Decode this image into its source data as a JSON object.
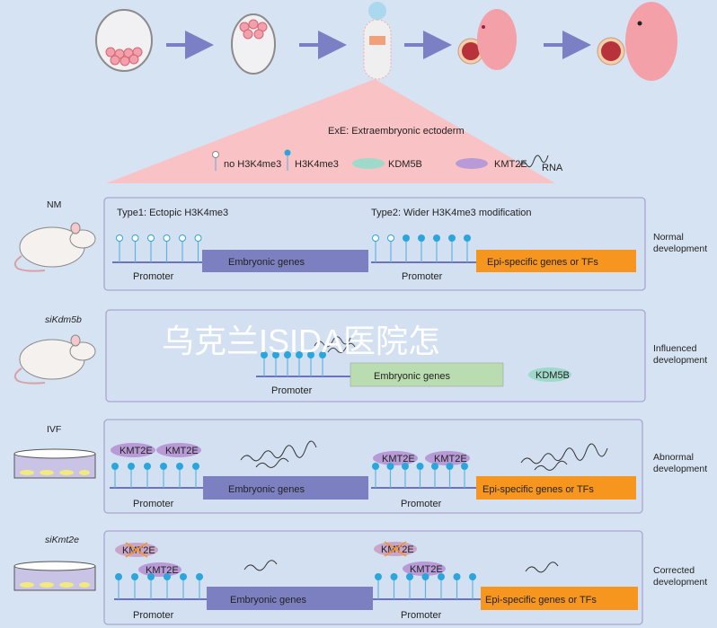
{
  "legend": {
    "title": "ExE: Extraembryonic ectoderm",
    "no_mark": "no H3K4me3",
    "mark": "H3K4me3",
    "kdm5b": "KDM5B",
    "kmt2e": "KMT2E",
    "rna": "RNA"
  },
  "colors": {
    "background": "#d6e3f3",
    "embryonic_box": "#7d80c0",
    "embryonic_box_influenced": "#b9dcb0",
    "epi_box": "#f6961f",
    "lollipop": "#2aa6dc",
    "kmt2e": "#b79ad6",
    "kdm5b": "#9fd9c9",
    "triangle": "#f9c3c6",
    "arrow": "#7b80c4"
  },
  "rows": [
    {
      "label": "NM",
      "outcome_line1": "Normal",
      "outcome_line2": "development",
      "type1": "Type1: Ectopic H3K4me3",
      "type2": "Type2: Wider H3K4me3 modification",
      "left_gene": "Embryonic genes",
      "right_gene": "Epi-specific genes or TFs",
      "promoter": "Promoter",
      "left_marks": [
        "open",
        "open",
        "open",
        "open",
        "open",
        "open"
      ],
      "right_marks": [
        "open",
        "open",
        "filled",
        "filled",
        "filled",
        "filled",
        "filled"
      ]
    },
    {
      "label": "siKdm5b",
      "outcome_line1": "Influenced",
      "outcome_line2": "development",
      "protein": "KDM5B",
      "left_gene": "Embryonic genes",
      "promoter": "Promoter",
      "left_marks": [
        "filled",
        "filled",
        "filled",
        "filled",
        "filled",
        "filled"
      ]
    },
    {
      "label": "IVF",
      "outcome_line1": "Abnormal",
      "outcome_line2": "development",
      "protein": "KMT2E",
      "left_gene": "Embryonic genes",
      "right_gene": "Epi-specific genes or TFs",
      "promoter": "Promoter",
      "left_marks": [
        "filled",
        "filled",
        "filled",
        "filled",
        "filled",
        "filled"
      ],
      "right_marks": [
        "filled",
        "filled",
        "filled",
        "filled",
        "filled",
        "filled",
        "filled"
      ]
    },
    {
      "label": "siKmt2e",
      "outcome_line1": "Corrected",
      "outcome_line2": "development",
      "protein": "KMT2E",
      "left_gene": "Embryonic genes",
      "right_gene": "Epi-specific genes or TFs",
      "promoter": "Promoter",
      "left_marks": [
        "filled",
        "filled",
        "filled",
        "filled",
        "filled",
        "filled"
      ],
      "right_marks": [
        "filled",
        "filled",
        "filled",
        "filled",
        "filled",
        "filled",
        "filled"
      ]
    }
  ],
  "watermark": "乌克兰ISIDA医院怎"
}
